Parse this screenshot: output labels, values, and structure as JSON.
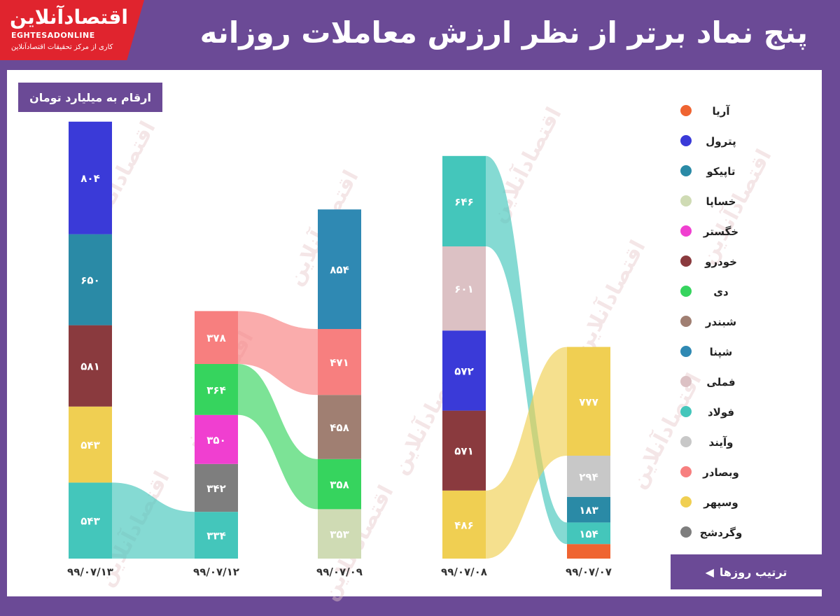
{
  "header": {
    "title": "پنج نماد برتر از نظر ارزش معاملات روزانه",
    "logo_text": "اقتصادآنلاین",
    "logo_latin": "EGHTESADONLINE",
    "logo_sub": "کاری از مرکز تحقیقات اقتصادآنلاین"
  },
  "unit_label": "ارقام به میلیارد تومان",
  "order_label": "ترتیب روزها",
  "order_arrow": "◀",
  "watermark_text": "اقتصادآنلاین",
  "chart_data": {
    "type": "bar",
    "stacked": true,
    "title": "پنج نماد برتر از نظر ارزش معاملات روزانه",
    "unit": "ارقام به میلیارد تومان",
    "categories": [
      "۹۹/۰۷/۱۳",
      "۹۹/۰۷/۱۲",
      "۹۹/۰۷/۰۹",
      "۹۹/۰۷/۰۸",
      "۹۹/۰۷/۰۷"
    ],
    "series_colors": {
      "آریا": "#ef6431",
      "پترول": "#3a3ad8",
      "تاپیکو": "#2a8aa6",
      "خساپا": "#cfdbb4",
      "خگستر": "#f03fd0",
      "خودرو": "#8a3a3e",
      "دی": "#36d45e",
      "شبندر": "#a07f72",
      "شپنا": "#2f89b3",
      "فملی": "#dcc1c4",
      "فولاد": "#44c6bb",
      "وآیند": "#c8c8c8",
      "وبصادر": "#f77f7f",
      "وسپهر": "#f0cf52",
      "وگردشج": "#7e7e7e"
    },
    "columns": [
      {
        "date": "۹۹/۰۷/۱۳",
        "segments": [
          {
            "name": "فولاد",
            "value": 543,
            "label": "۵۴۳"
          },
          {
            "name": "وسپهر",
            "value": 543,
            "label": "۵۴۳"
          },
          {
            "name": "خودرو",
            "value": 581,
            "label": "۵۸۱"
          },
          {
            "name": "تاپیکو",
            "value": 650,
            "label": "۶۵۰"
          },
          {
            "name": "پترول",
            "value": 804,
            "label": "۸۰۴"
          }
        ]
      },
      {
        "date": "۹۹/۰۷/۱۲",
        "segments": [
          {
            "name": "فولاد",
            "value": 334,
            "label": "۳۳۴"
          },
          {
            "name": "وگردشج",
            "value": 342,
            "label": "۳۴۲"
          },
          {
            "name": "خگستر",
            "value": 350,
            "label": "۳۵۰"
          },
          {
            "name": "دی",
            "value": 364,
            "label": "۳۶۴"
          },
          {
            "name": "وبصادر",
            "value": 378,
            "label": "۳۷۸"
          }
        ]
      },
      {
        "date": "۹۹/۰۷/۰۹",
        "segments": [
          {
            "name": "خساپا",
            "value": 353,
            "label": "۳۵۳"
          },
          {
            "name": "دی",
            "value": 358,
            "label": "۳۵۸"
          },
          {
            "name": "شبندر",
            "value": 458,
            "label": "۴۵۸"
          },
          {
            "name": "وبصادر",
            "value": 471,
            "label": "۴۷۱"
          },
          {
            "name": "شپنا",
            "value": 854,
            "label": "۸۵۴"
          }
        ]
      },
      {
        "date": "۹۹/۰۷/۰۸",
        "segments": [
          {
            "name": "وسپهر",
            "value": 486,
            "label": "۴۸۶"
          },
          {
            "name": "خودرو",
            "value": 571,
            "label": "۵۷۱"
          },
          {
            "name": "پترول",
            "value": 572,
            "label": "۵۷۲"
          },
          {
            "name": "فملی",
            "value": 601,
            "label": "۶۰۱"
          },
          {
            "name": "فولاد",
            "value": 646,
            "label": "۶۴۶"
          }
        ]
      },
      {
        "date": "۹۹/۰۷/۰۷",
        "segments": [
          {
            "name": "آریا",
            "value": 104,
            "label": ""
          },
          {
            "name": "فولاد",
            "value": 154,
            "label": "۱۵۴"
          },
          {
            "name": "تاپیکو",
            "value": 183,
            "label": "۱۸۳"
          },
          {
            "name": "وآیند",
            "value": 294,
            "label": "۲۹۴"
          },
          {
            "name": "وسپهر",
            "value": 777,
            "label": "۷۷۷"
          }
        ]
      }
    ],
    "flows": [
      {
        "series": "فولاد",
        "from": 0,
        "to": 1
      },
      {
        "series": "وبصادر",
        "from": 1,
        "to": 2
      },
      {
        "series": "دی",
        "from": 1,
        "to": 2
      },
      {
        "series": "فولاد",
        "from": 3,
        "to": 4
      },
      {
        "series": "وسپهر",
        "from": 3,
        "to": 4
      }
    ],
    "legend": [
      "آریا",
      "پترول",
      "تاپیکو",
      "خساپا",
      "خگستر",
      "خودرو",
      "دی",
      "شبندر",
      "شپنا",
      "فملی",
      "فولاد",
      "وآیند",
      "وبصادر",
      "وسپهر",
      "وگردشج"
    ],
    "legend_position": "right"
  }
}
